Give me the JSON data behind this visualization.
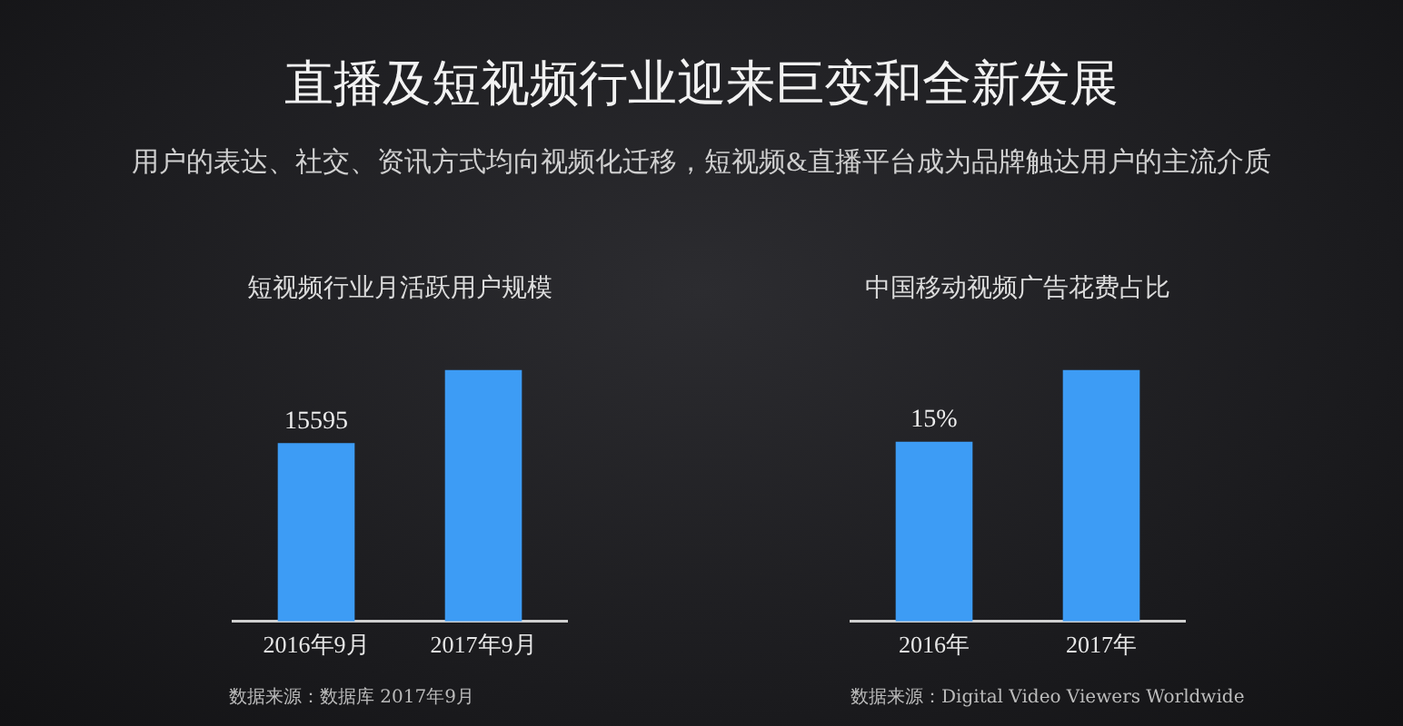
{
  "chart_data": [
    {
      "type": "bar",
      "title": "短视频行业月活跃用户规模",
      "categories": [
        "2016年9月",
        "2017年9月"
      ],
      "values": [
        15595,
        22000
      ],
      "value_labels": [
        "15595",
        null
      ],
      "tick_labels": "x",
      "color": "#3d9cf5",
      "annotations": [
        "直播及短视频行业迎来巨变和全新发展",
        "用户的表达、社交、资讯方式均向视频化迁移，短视频&直播平台成为品牌触达用户的主流介质",
        "数据来源：数据库 2017年9月"
      ]
    },
    {
      "type": "bar",
      "title": "中国移动视频广告花费占比",
      "categories": [
        "2016年",
        "2017年"
      ],
      "values": [
        15,
        21
      ],
      "value_labels": [
        "15%",
        null
      ],
      "tick_labels": "x",
      "color": "#3d9cf5",
      "annotations": [
        "数据来源：Digital Video Viewers Worldwide"
      ]
    }
  ]
}
